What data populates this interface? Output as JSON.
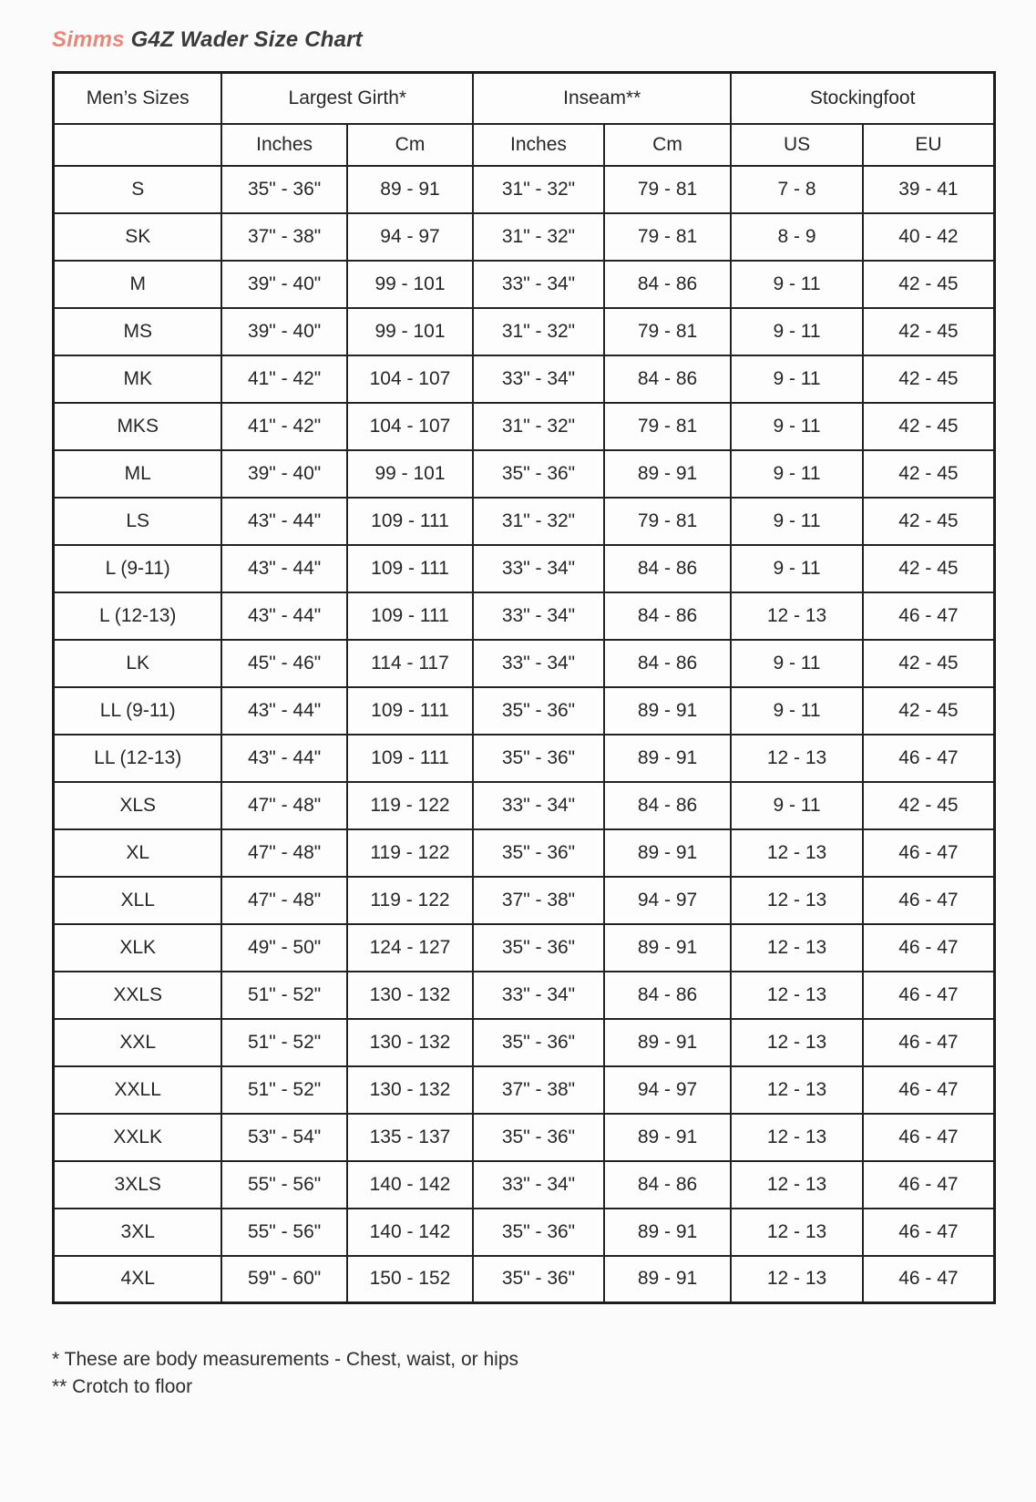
{
  "title": {
    "brand": "Simms",
    "rest": "G4Z Wader Size Chart"
  },
  "colors": {
    "brand_accent": "#e4897b",
    "text": "#2b2b2b",
    "table_border": "#1c1c1c",
    "background": "#fbfbfb"
  },
  "table": {
    "group_headers": [
      {
        "label": "Men’s Sizes",
        "span": 1
      },
      {
        "label": "Largest Girth*",
        "span": 2
      },
      {
        "label": "Inseam**",
        "span": 2
      },
      {
        "label": "Stockingfoot",
        "span": 2
      }
    ],
    "sub_headers": [
      "",
      "Inches",
      "Cm",
      "Inches",
      "Cm",
      "US",
      "EU"
    ],
    "rows": [
      [
        "S",
        "35\" - 36\"",
        "89 - 91",
        "31\" - 32\"",
        "79 - 81",
        "7 - 8",
        "39 - 41"
      ],
      [
        "SK",
        "37\" - 38\"",
        "94 - 97",
        "31\" - 32\"",
        "79 - 81",
        "8 - 9",
        "40 - 42"
      ],
      [
        "M",
        "39\" - 40\"",
        "99 - 101",
        "33\" - 34\"",
        "84 - 86",
        "9 - 11",
        "42 - 45"
      ],
      [
        "MS",
        "39\" - 40\"",
        "99 - 101",
        "31\" - 32\"",
        "79 - 81",
        "9 - 11",
        "42 - 45"
      ],
      [
        "MK",
        "41\" - 42\"",
        "104 - 107",
        "33\" - 34\"",
        "84 - 86",
        "9 - 11",
        "42 - 45"
      ],
      [
        "MKS",
        "41\" - 42\"",
        "104 - 107",
        "31\" - 32\"",
        "79 - 81",
        "9 - 11",
        "42 - 45"
      ],
      [
        "ML",
        "39\" - 40\"",
        "99 - 101",
        "35\" - 36\"",
        "89 - 91",
        "9 - 11",
        "42 - 45"
      ],
      [
        "LS",
        "43\" - 44\"",
        "109 - 111",
        "31\" - 32\"",
        "79 - 81",
        "9 - 11",
        "42 - 45"
      ],
      [
        "L (9-11)",
        "43\" - 44\"",
        "109 - 111",
        "33\" - 34\"",
        "84 - 86",
        "9 - 11",
        "42 - 45"
      ],
      [
        "L (12-13)",
        "43\" - 44\"",
        "109 - 111",
        "33\" - 34\"",
        "84 - 86",
        "12 - 13",
        "46 - 47"
      ],
      [
        "LK",
        "45\" - 46\"",
        "114 - 117",
        "33\" - 34\"",
        "84 - 86",
        "9 - 11",
        "42 - 45"
      ],
      [
        "LL (9-11)",
        "43\" - 44\"",
        "109 - 111",
        "35\" - 36\"",
        "89 - 91",
        "9 - 11",
        "42 - 45"
      ],
      [
        "LL (12-13)",
        "43\" - 44\"",
        "109 - 111",
        "35\" - 36\"",
        "89 - 91",
        "12 - 13",
        "46 - 47"
      ],
      [
        "XLS",
        "47\" - 48\"",
        "119 - 122",
        "33\" - 34\"",
        "84 - 86",
        "9 - 11",
        "42 - 45"
      ],
      [
        "XL",
        "47\" - 48\"",
        "119 - 122",
        "35\" - 36\"",
        "89 - 91",
        "12 - 13",
        "46 - 47"
      ],
      [
        "XLL",
        "47\" - 48\"",
        "119 - 122",
        "37\" - 38\"",
        "94 - 97",
        "12 - 13",
        "46 - 47"
      ],
      [
        "XLK",
        "49\" - 50\"",
        "124 - 127",
        "35\" - 36\"",
        "89 - 91",
        "12 - 13",
        "46 - 47"
      ],
      [
        "XXLS",
        "51\" - 52\"",
        "130 - 132",
        "33\" - 34\"",
        "84 - 86",
        "12 - 13",
        "46 - 47"
      ],
      [
        "XXL",
        "51\" - 52\"",
        "130 - 132",
        "35\" - 36\"",
        "89 - 91",
        "12 - 13",
        "46 - 47"
      ],
      [
        "XXLL",
        "51\" - 52\"",
        "130 - 132",
        "37\" - 38\"",
        "94 - 97",
        "12 - 13",
        "46 - 47"
      ],
      [
        "XXLK",
        "53\" - 54\"",
        "135 - 137",
        "35\" - 36\"",
        "89 - 91",
        "12 - 13",
        "46 - 47"
      ],
      [
        "3XLS",
        "55\" - 56\"",
        "140 - 142",
        "33\" - 34\"",
        "84 - 86",
        "12 - 13",
        "46 - 47"
      ],
      [
        "3XL",
        "55\" - 56\"",
        "140 - 142",
        "35\" - 36\"",
        "89 - 91",
        "12 - 13",
        "46 - 47"
      ],
      [
        "4XL",
        "59\" - 60\"",
        "150 - 152",
        "35\" - 36\"",
        "89 - 91",
        "12 - 13",
        "46 - 47"
      ]
    ]
  },
  "footnotes": [
    "* These are body measurements - Chest, waist, or hips",
    "** Crotch to floor"
  ]
}
